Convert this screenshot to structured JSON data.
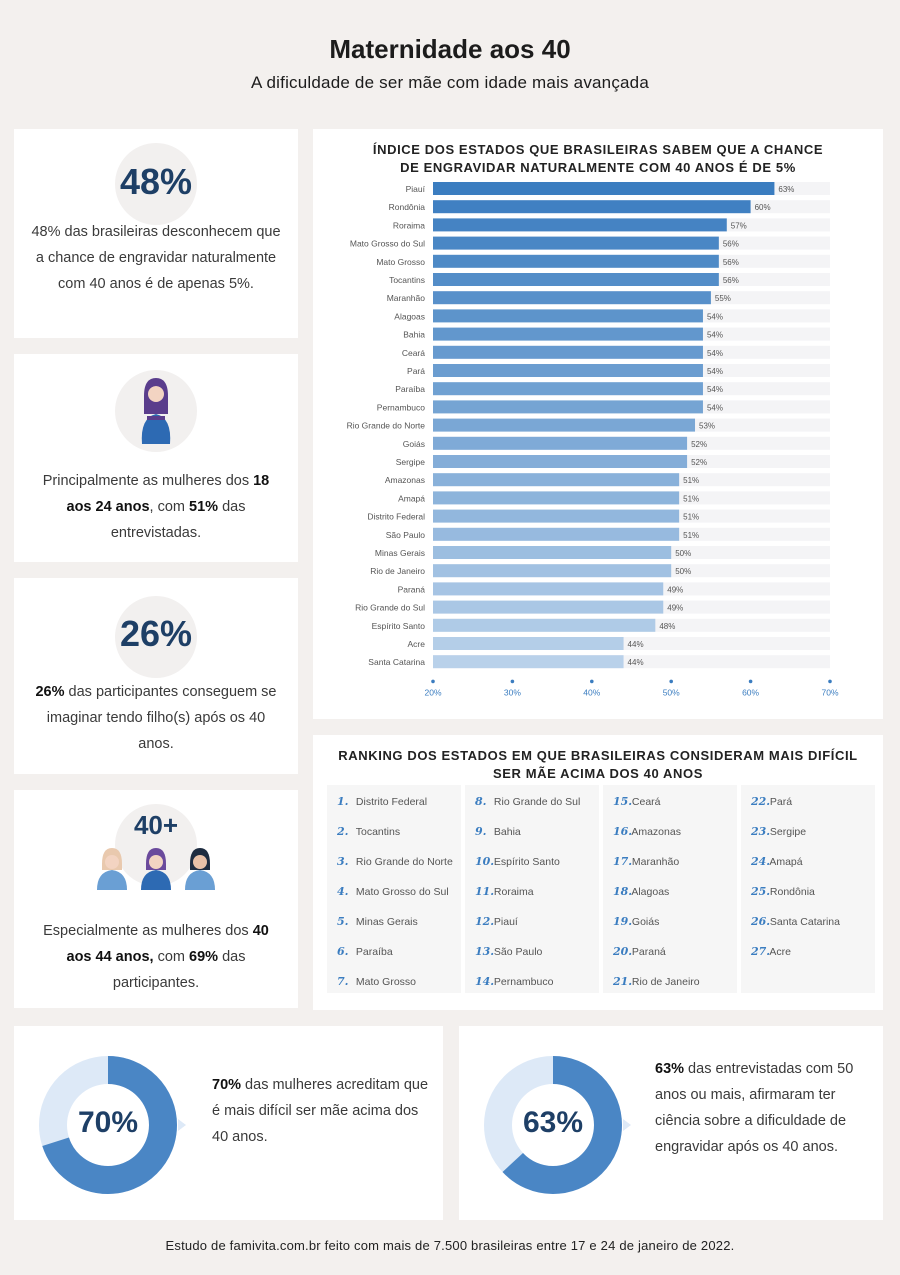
{
  "header": {
    "title": "Maternidade aos 40",
    "subtitle": "A dificuldade de ser mãe com idade mais avançada"
  },
  "stats": {
    "s1": {
      "value": "48%",
      "text": "48% das brasileiras desconhecem que a chance de engravidar naturalmente com 40 anos é de apenas 5%."
    },
    "s2": {
      "pre": "Principalmente as mulheres dos ",
      "bold1": "18 aos 24 anos",
      "mid": ", com ",
      "bold2": "51%",
      "post": " das entrevistadas."
    },
    "s3": {
      "value": "26%",
      "bold": "26%",
      "post": " das participantes conseguem se imaginar tendo filho(s) após os 40 anos."
    },
    "s4": {
      "value": "40+",
      "pre": "Especialmente as mulheres dos ",
      "bold1": "40 aos 44 anos,",
      "mid": " com ",
      "bold2": "69%",
      "post": " das participantes."
    }
  },
  "chart_data": {
    "type": "bar",
    "orientation": "horizontal",
    "title": "ÍNDICE DOS ESTADOS QUE BRASILEIRAS SABEM QUE A CHANCE DE ENGRAVIDAR NATURALMENTE COM 40 ANOS É DE 5%",
    "categories": [
      "Piauí",
      "Rondônia",
      "Roraima",
      "Mato Grosso do Sul",
      "Mato Grosso",
      "Tocantins",
      "Maranhão",
      "Alagoas",
      "Bahia",
      "Ceará",
      "Pará",
      "Paraíba",
      "Pernambuco",
      "Rio Grande do Norte",
      "Goiás",
      "Sergipe",
      "Amazonas",
      "Amapá",
      "Distrito Federal",
      "São Paulo",
      "Minas Gerais",
      "Rio de Janeiro",
      "Paraná",
      "Rio Grande do Sul",
      "Espírito Santo",
      "Acre",
      "Santa Catarina"
    ],
    "values": [
      63,
      60,
      57,
      56,
      56,
      56,
      55,
      54,
      54,
      54,
      54,
      54,
      54,
      53,
      52,
      52,
      51,
      51,
      51,
      51,
      50,
      50,
      49,
      49,
      48,
      44,
      44
    ],
    "value_labels": [
      "63%",
      "60%",
      "57%",
      "56%",
      "56%",
      "56%",
      "55%",
      "54%",
      "54%",
      "54%",
      "54%",
      "54%",
      "54%",
      "53%",
      "52%",
      "52%",
      "51%",
      "51%",
      "51%",
      "51%",
      "50%",
      "50%",
      "49%",
      "49%",
      "48%",
      "44%",
      "44%"
    ],
    "xlim": [
      20,
      70
    ],
    "xticks": [
      "20%",
      "30%",
      "40%",
      "50%",
      "60%",
      "70%"
    ],
    "tick_values": [
      20,
      30,
      40,
      50,
      60,
      70
    ],
    "bar_color_top": "#3b7dc0",
    "bar_color_bottom": "#b9d1ea",
    "track_color": "#f4f4f6"
  },
  "ranking": {
    "title": "RANKING DOS ESTADOS EM QUE BRASILEIRAS CONSIDERAM MAIS DIFÍCIL SER MÃE ACIMA DOS 40 ANOS",
    "items": [
      {
        "n": "1.",
        "name": "Distrito Federal"
      },
      {
        "n": "2.",
        "name": "Tocantins"
      },
      {
        "n": "3.",
        "name": "Rio Grande do Norte"
      },
      {
        "n": "4.",
        "name": "Mato Grosso do Sul"
      },
      {
        "n": "5.",
        "name": "Minas Gerais"
      },
      {
        "n": "6.",
        "name": "Paraíba"
      },
      {
        "n": "7.",
        "name": "Mato Grosso"
      },
      {
        "n": "8.",
        "name": "Rio Grande do Sul"
      },
      {
        "n": "9.",
        "name": "Bahia"
      },
      {
        "n": "10.",
        "name": "Espírito Santo"
      },
      {
        "n": "11.",
        "name": "Roraima"
      },
      {
        "n": "12.",
        "name": "Piauí"
      },
      {
        "n": "13.",
        "name": "São Paulo"
      },
      {
        "n": "14.",
        "name": "Pernambuco"
      },
      {
        "n": "15.",
        "name": "Ceará"
      },
      {
        "n": "16.",
        "name": "Amazonas"
      },
      {
        "n": "17.",
        "name": "Maranhão"
      },
      {
        "n": "18.",
        "name": "Alagoas"
      },
      {
        "n": "19.",
        "name": "Goiás"
      },
      {
        "n": "20.",
        "name": "Paraná"
      },
      {
        "n": "21.",
        "name": "Rio de Janeiro"
      },
      {
        "n": "22.",
        "name": "Pará"
      },
      {
        "n": "23.",
        "name": "Sergipe"
      },
      {
        "n": "24.",
        "name": "Amapá"
      },
      {
        "n": "25.",
        "name": "Rondônia"
      },
      {
        "n": "26.",
        "name": "Santa Catarina"
      },
      {
        "n": "27.",
        "name": "Acre"
      }
    ]
  },
  "donuts": {
    "d1": {
      "value": "70%",
      "fraction": 0.7,
      "bold": "70%",
      "post": " das mulheres acreditam que é mais difícil ser mãe acima dos 40 anos."
    },
    "d2": {
      "value": "63%",
      "fraction": 0.63,
      "bold": "63%",
      "post": " das entrevistadas com 50 anos ou mais,  afirmaram ter ciência sobre a dificuldade de engravidar após os 40 anos."
    },
    "fill_color": "#4a86c5",
    "track_color": "#dde9f7"
  },
  "footer": {
    "text": "Estudo de famivita.com.br feito com mais de 7.500 brasileiras entre 17 e 24 de janeiro de 2022."
  }
}
